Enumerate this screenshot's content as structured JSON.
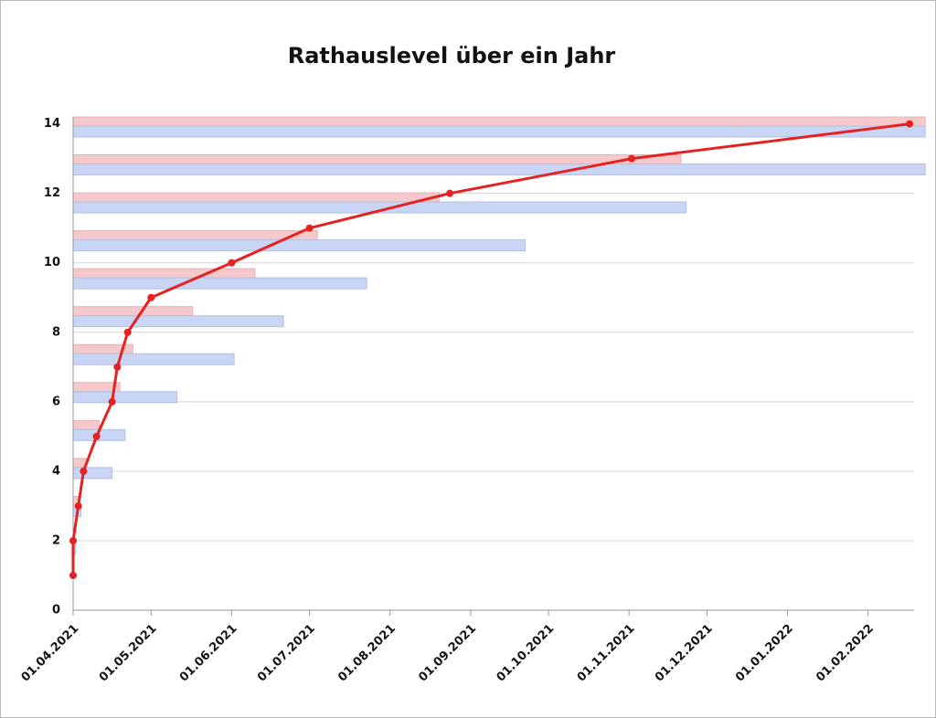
{
  "chart_data": {
    "type": "line",
    "title": "Rathauslevel über ein Jahr",
    "x": [
      "01.04.2021",
      "01.04.2021",
      "03.04.2021",
      "05.04.2021",
      "10.04.2021",
      "16.04.2021",
      "18.04.2021",
      "22.04.2021",
      "01.05.2021",
      "01.06.2021",
      "01.07.2021",
      "24.08.2021",
      "02.11.2021",
      "17.02.2022"
    ],
    "series": [
      {
        "color": "#e52222",
        "values": [
          1,
          2,
          3,
          4,
          5,
          6,
          7,
          8,
          9,
          10,
          11,
          12,
          13,
          14
        ]
      }
    ],
    "bars": {
      "type": "bar",
      "series": [
        {
          "color": "#f5c9cb",
          "values": [
            "01.04.2021",
            "01.04.2021",
            "03.04.2021",
            "06.04.2021",
            "11.04.2021",
            "19.04.2021",
            "24.04.2021",
            "17.05.2021",
            "10.06.2021",
            "04.07.2021",
            "20.08.2021",
            "21.11.2021",
            "23.02.2022"
          ]
        },
        {
          "color": "#c9d5f5",
          "values": [
            "01.04.2021",
            "02.04.2021",
            "04.04.2021",
            "16.04.2021",
            "21.04.2021",
            "11.05.2021",
            "02.06.2021",
            "21.06.2021",
            "23.07.2021",
            "22.09.2021",
            "23.11.2021",
            "23.02.2022",
            "23.02.2022"
          ]
        }
      ]
    },
    "xlim": [
      "01.04.2021",
      "24.02.2022"
    ],
    "xticks": [
      "01.04.2021",
      "01.05.2021",
      "01.06.2021",
      "01.07.2021",
      "01.08.2021",
      "01.09.2021",
      "01.10.2021",
      "01.11.2021",
      "01.12.2021",
      "01.01.2022",
      "01.02.2022"
    ],
    "ylim": [
      0,
      14.2
    ],
    "yticks": [
      0,
      2,
      4,
      6,
      8,
      10,
      12,
      14
    ],
    "grid": true
  }
}
